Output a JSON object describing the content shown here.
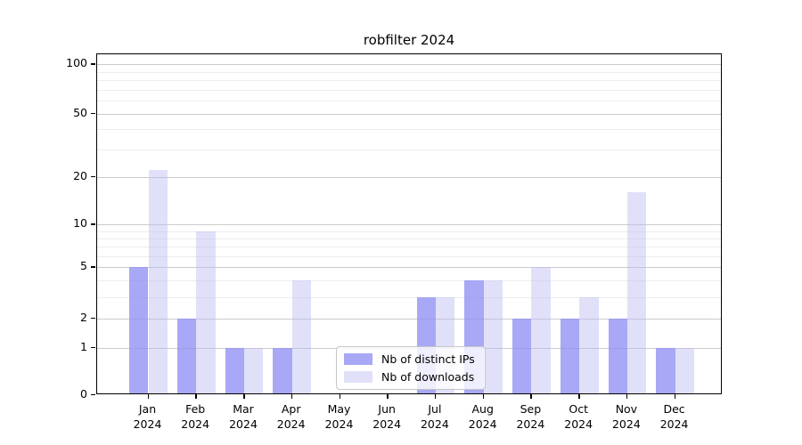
{
  "chart_data": {
    "type": "bar",
    "title": "robfilter 2024",
    "categories": [
      "Jan 2024",
      "Feb 2024",
      "Mar 2024",
      "Apr 2024",
      "May 2024",
      "Jun 2024",
      "Jul 2024",
      "Aug 2024",
      "Sep 2024",
      "Oct 2024",
      "Nov 2024",
      "Dec 2024"
    ],
    "series": [
      {
        "name": "Nb of distinct IPs",
        "color": "#9090f4",
        "alpha": 0.78,
        "values": [
          5,
          2,
          1,
          1,
          0,
          0,
          3,
          4,
          2,
          2,
          2,
          1
        ]
      },
      {
        "name": "Nb of downloads",
        "color": "#bbbbf2",
        "alpha": 0.45,
        "values": [
          22,
          9,
          1,
          4,
          0,
          0,
          3,
          4,
          5,
          3,
          16,
          1
        ]
      }
    ],
    "y_axis": {
      "scale": "log1p",
      "ticks": [
        0,
        1,
        2,
        5,
        10,
        20,
        50,
        100
      ],
      "minor_ticks": [
        3,
        4,
        6,
        7,
        8,
        9,
        30,
        40,
        60,
        70,
        80,
        90
      ],
      "ylim": [
        0,
        110
      ]
    },
    "x_axis": {
      "label_line2": "2024"
    },
    "legend": {
      "position": "lower center"
    },
    "grid": true,
    "colors": {
      "major_grid": "#cbcbcb",
      "minor_grid": "#ededf0",
      "spine": "#000000",
      "text": "#000000"
    }
  }
}
